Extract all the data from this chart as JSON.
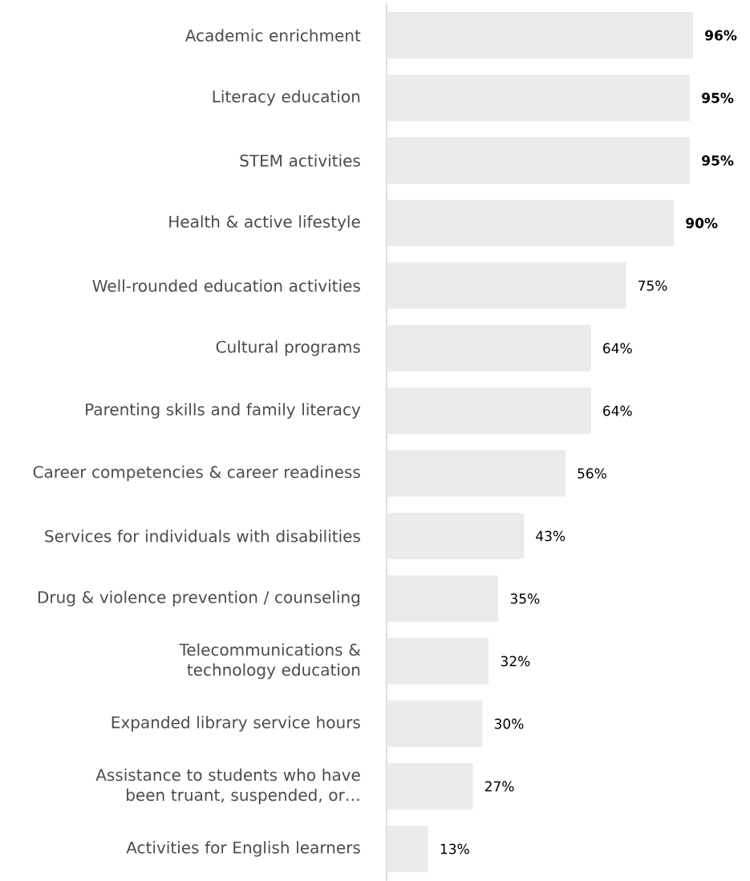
{
  "chart_data": {
    "type": "bar",
    "orientation": "horizontal",
    "categories": [
      "Academic enrichment",
      "Literacy education",
      "STEM activities",
      "Health & active lifestyle",
      "Well-rounded education activities",
      "Cultural programs",
      "Parenting skills and family literacy",
      "Career competencies & career readiness",
      "Services for individuals with disabilities",
      "Drug & violence prevention / counseling",
      "Telecommunications & technology education",
      "Expanded library service hours",
      "Assistance to students who have been truant, suspended, or…",
      "Activities for English learners"
    ],
    "values": [
      96,
      95,
      95,
      90,
      75,
      64,
      64,
      56,
      43,
      35,
      32,
      30,
      27,
      13
    ],
    "value_labels": [
      "**96%**",
      "**95%**",
      "**95%**",
      "**90%**",
      "75%",
      "64%",
      "64%",
      "56%",
      "43%",
      "35%",
      "32%",
      "30%",
      "27%",
      "13%"
    ],
    "color": "#ebebeb"
  }
}
